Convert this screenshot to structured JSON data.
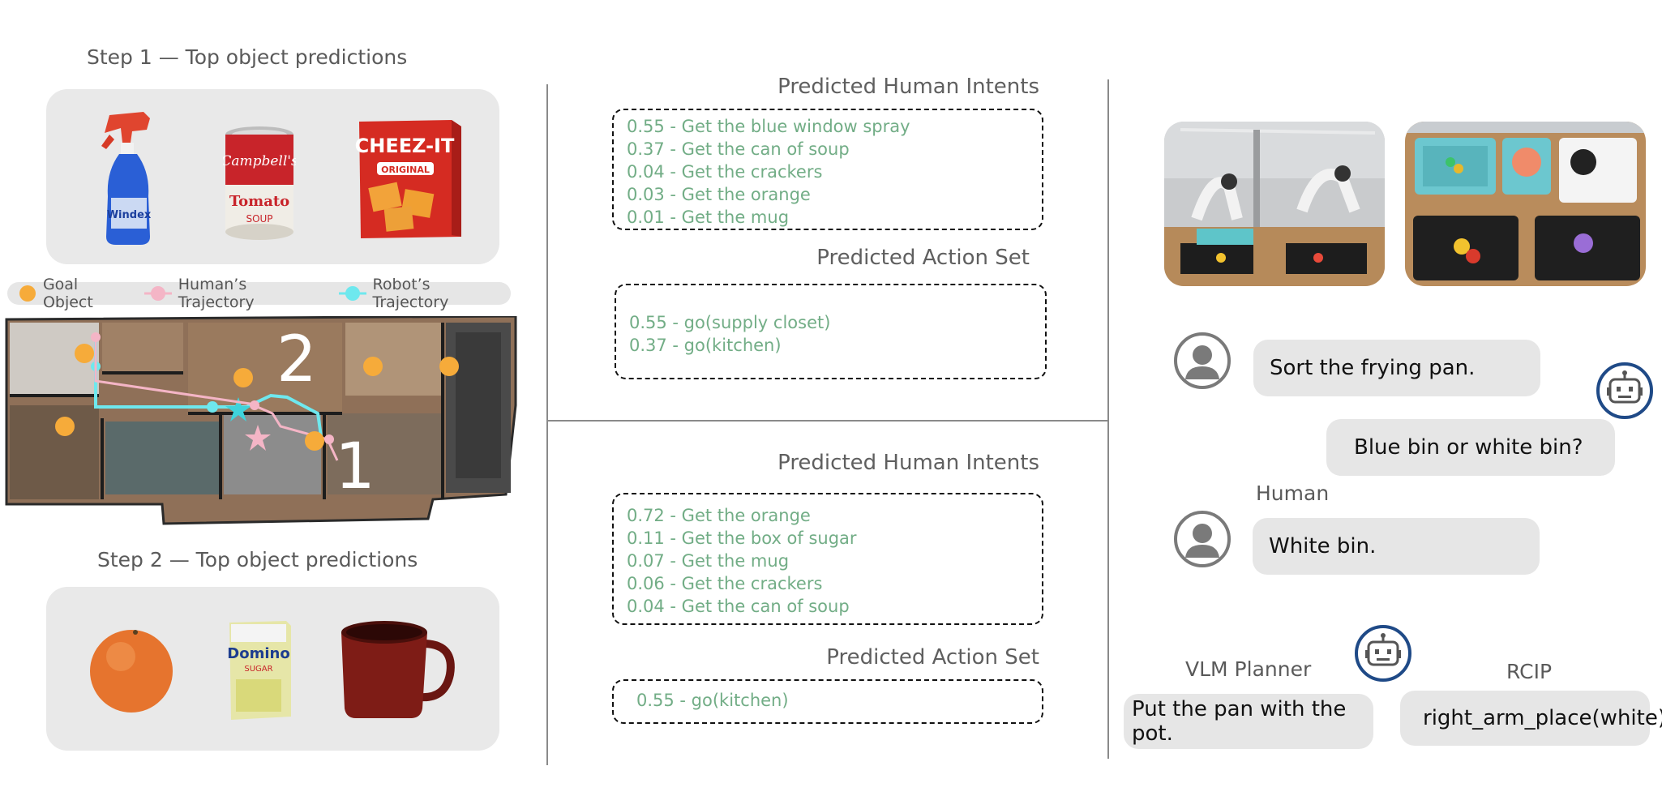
{
  "left": {
    "step1_title": "Step 1 — Top object predictions",
    "step2_title": "Step 2 — Top object predictions",
    "step1_objects": [
      "spray-bottle",
      "soup-can",
      "cracker-box"
    ],
    "step1_object_labels": {
      "spray_brand": "Windex",
      "can_brand": "Campbell's",
      "can_text1": "Tomato",
      "can_text2": "SOUP",
      "box_brand": "CHEEZ-IT",
      "box_text": "ORIGINAL"
    },
    "step2_objects": [
      "orange",
      "sugar-box",
      "mug"
    ],
    "step2_object_labels": {
      "sugar_brand": "Domino",
      "sugar_text": "SUGAR"
    },
    "legend": {
      "goal": "Goal Object",
      "human": "Human’s Trajectory",
      "robot": "Robot’s Trajectory"
    },
    "map_markers": {
      "m1": "1",
      "m2": "2"
    },
    "colors": {
      "goal": "#f6ab3a",
      "human": "#f4b5c6",
      "robot": "#6ee8ee"
    }
  },
  "middle": {
    "top": {
      "intents_title": "Predicted Human Intents",
      "intents": [
        "0.55 - Get the blue window spray",
        "0.37 - Get the can of soup",
        "0.04 - Get the crackers",
        "0.03 - Get the orange",
        "0.01 - Get the mug"
      ],
      "actions_title": "Predicted Action Set",
      "actions": [
        "0.55 - go(supply closet)",
        "0.37 - go(kitchen)"
      ]
    },
    "bottom": {
      "intents_title": "Predicted Human Intents",
      "intents": [
        "0.72 - Get the orange",
        "0.11 - Get the box of sugar",
        "0.07 - Get the mug",
        "0.06 - Get the crackers",
        "0.04 - Get the can of soup"
      ],
      "actions_title": "Predicted Action Set",
      "actions": [
        "0.55 - go(kitchen)"
      ]
    },
    "text_color": "#72ad86"
  },
  "right": {
    "chat": {
      "human_msg1": "Sort the frying pan.",
      "robot_msg": "Blue bin or white bin?",
      "human_label": "Human",
      "human_msg2": "White bin."
    },
    "planner": {
      "vlm_label": "VLM Planner",
      "vlm_text": "Put the pan with the pot.",
      "rcip_label": "RCIP",
      "rcip_text": "right_arm_place(white)"
    },
    "robot_icon_color": "#1f4a87"
  }
}
